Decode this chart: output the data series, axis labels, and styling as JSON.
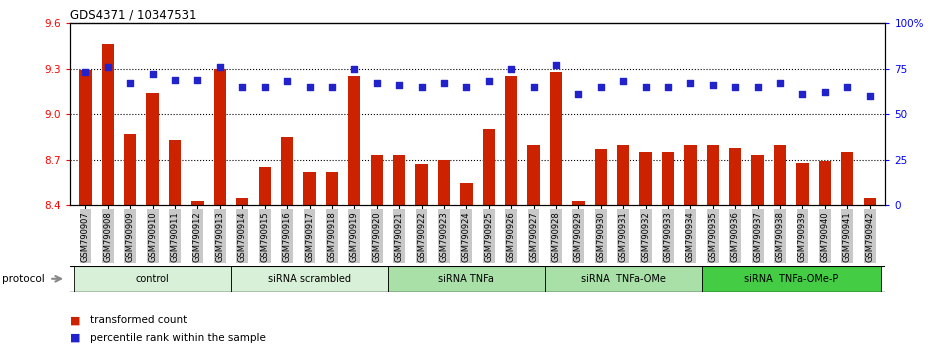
{
  "title": "GDS4371 / 10347531",
  "samples": [
    "GSM790907",
    "GSM790908",
    "GSM790909",
    "GSM790910",
    "GSM790911",
    "GSM790912",
    "GSM790913",
    "GSM790914",
    "GSM790915",
    "GSM790916",
    "GSM790917",
    "GSM790918",
    "GSM790919",
    "GSM790920",
    "GSM790921",
    "GSM790922",
    "GSM790923",
    "GSM790924",
    "GSM790925",
    "GSM790926",
    "GSM790927",
    "GSM790928",
    "GSM790929",
    "GSM790930",
    "GSM790931",
    "GSM790932",
    "GSM790933",
    "GSM790934",
    "GSM790935",
    "GSM790936",
    "GSM790937",
    "GSM790938",
    "GSM790939",
    "GSM790940",
    "GSM790941",
    "GSM790942"
  ],
  "bar_values": [
    9.29,
    9.46,
    8.87,
    9.14,
    8.83,
    8.43,
    9.3,
    8.45,
    8.65,
    8.85,
    8.62,
    8.62,
    9.25,
    8.73,
    8.73,
    8.67,
    8.7,
    8.55,
    8.9,
    9.25,
    8.8,
    9.28,
    8.43,
    8.77,
    8.8,
    8.75,
    8.75,
    8.8,
    8.8,
    8.78,
    8.73,
    8.8,
    8.68,
    8.69,
    8.75,
    8.45
  ],
  "dot_values": [
    73,
    76,
    67,
    72,
    69,
    69,
    76,
    65,
    65,
    68,
    65,
    65,
    75,
    67,
    66,
    65,
    67,
    65,
    68,
    75,
    65,
    77,
    61,
    65,
    68,
    65,
    65,
    67,
    66,
    65,
    65,
    67,
    61,
    62,
    65,
    60
  ],
  "bar_color": "#cc2200",
  "dot_color": "#2222cc",
  "bar_bottom": 8.4,
  "ylim_left": [
    8.4,
    9.6
  ],
  "ylim_right": [
    0,
    100
  ],
  "yticks_left": [
    8.4,
    8.7,
    9.0,
    9.3,
    9.6
  ],
  "yticks_right": [
    0,
    25,
    50,
    75,
    100
  ],
  "ytick_right_labels": [
    "0",
    "25",
    "50",
    "75",
    "100%"
  ],
  "hlines": [
    8.7,
    9.0,
    9.3
  ],
  "groups": [
    {
      "label": "control",
      "start": 0,
      "end": 7,
      "color": "#d8f0d8"
    },
    {
      "label": "siRNA scrambled",
      "start": 7,
      "end": 14,
      "color": "#d8f0d8"
    },
    {
      "label": "siRNA TNFa",
      "start": 14,
      "end": 21,
      "color": "#a8e0a8"
    },
    {
      "label": "siRNA  TNFa-OMe",
      "start": 21,
      "end": 28,
      "color": "#a8e0a8"
    },
    {
      "label": "siRNA  TNFa-OMe-P",
      "start": 28,
      "end": 36,
      "color": "#44cc44"
    }
  ],
  "xtick_bg": "#c8c8c8",
  "legend_bar_label": "transformed count",
  "legend_dot_label": "percentile rank within the sample",
  "protocol_label": "protocol"
}
